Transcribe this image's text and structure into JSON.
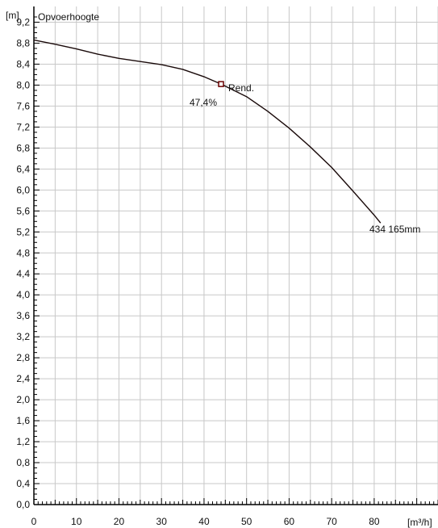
{
  "chart_data": {
    "type": "line",
    "title": "Opvoerhoogte",
    "xlabel": "[m³/h]",
    "ylabel": "[m]",
    "xlim": [
      0,
      95
    ],
    "ylim": [
      0,
      9.5
    ],
    "x_ticks": [
      0,
      10,
      20,
      30,
      40,
      50,
      60,
      70,
      80
    ],
    "x_tick_labels": [
      "0",
      "10",
      "20",
      "30",
      "40",
      "50",
      "60",
      "70",
      "80"
    ],
    "y_ticks": [
      0,
      0.4,
      0.8,
      1.2,
      1.6,
      2.0,
      2.4,
      2.8,
      3.2,
      3.6,
      4.0,
      4.4,
      4.8,
      5.2,
      5.6,
      6.0,
      6.4,
      6.8,
      7.2,
      7.6,
      8.0,
      8.4,
      8.8,
      9.2
    ],
    "y_tick_labels": [
      "0,0",
      "0,4",
      "0,8",
      "1,2",
      "1,6",
      "2,0",
      "2,4",
      "2,8",
      "3,2",
      "3,6",
      "4,0",
      "4,4",
      "4,8",
      "5,2",
      "5,6",
      "6,0",
      "6,4",
      "6,8",
      "7,2",
      "7,6",
      "8,0",
      "8,4",
      "8,8",
      "9,2"
    ],
    "grid": true,
    "series": [
      {
        "name": "434 165mm",
        "color": "#1a0a0a",
        "x": [
          0,
          5,
          10,
          15,
          20,
          25,
          30,
          35,
          40,
          44,
          50,
          55,
          60,
          65,
          70,
          75,
          80,
          81.5
        ],
        "y": [
          8.86,
          8.78,
          8.69,
          8.59,
          8.51,
          8.45,
          8.39,
          8.3,
          8.16,
          8.02,
          7.78,
          7.5,
          7.18,
          6.82,
          6.43,
          5.98,
          5.52,
          5.37
        ]
      }
    ],
    "annotations": {
      "efficiency_label": "Rend.",
      "efficiency_value": "47,4%",
      "efficiency_point": {
        "x": 44,
        "y": 8.02
      },
      "curve_label": "434 165mm"
    }
  }
}
